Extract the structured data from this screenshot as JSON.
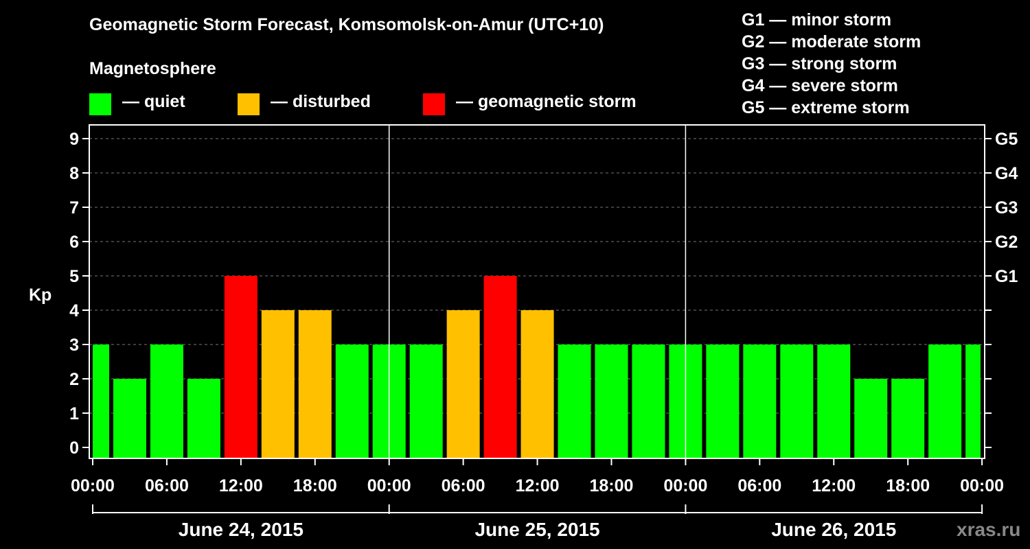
{
  "chart_data": {
    "type": "bar",
    "title": "Geomagnetic Storm Forecast, Komsomolsk-on-Amur (UTC+10)",
    "ylabel": "Kp",
    "ylim": [
      0,
      9
    ],
    "y_ticks": [
      "0",
      "1",
      "2",
      "3",
      "4",
      "5",
      "6",
      "7",
      "8",
      "9"
    ],
    "right_ticks": [
      {
        "kp": 5,
        "label": "G1"
      },
      {
        "kp": 6,
        "label": "G2"
      },
      {
        "kp": 7,
        "label": "G3"
      },
      {
        "kp": 8,
        "label": "G4"
      },
      {
        "kp": 9,
        "label": "G5"
      }
    ],
    "x_ticks": [
      "00:00",
      "06:00",
      "12:00",
      "18:00",
      "00:00",
      "06:00",
      "12:00",
      "18:00",
      "00:00",
      "06:00",
      "12:00",
      "18:00",
      "00:00"
    ],
    "days": [
      "June 24, 2015",
      "June 25, 2015",
      "June 26, 2015"
    ],
    "values": [
      3,
      2,
      3,
      2,
      5,
      4,
      4,
      3,
      3,
      3,
      4,
      5,
      4,
      3,
      3,
      3,
      3,
      3,
      3,
      3,
      3,
      2,
      2,
      3,
      3
    ],
    "colors": {
      "quiet": "#00ff00",
      "disturbed": "#ffc000",
      "storm": "#ff0000"
    },
    "legend_title": "Magnetosphere",
    "legend": [
      {
        "key": "quiet",
        "label": "— quiet"
      },
      {
        "key": "disturbed",
        "label": "— disturbed"
      },
      {
        "key": "storm",
        "label": "— geomagnetic storm"
      }
    ],
    "g_scale": [
      "G1 — minor storm",
      "G2 — moderate storm",
      "G3 — strong storm",
      "G4 — severe storm",
      "G5 — extreme storm"
    ]
  },
  "watermark": "xras.ru"
}
